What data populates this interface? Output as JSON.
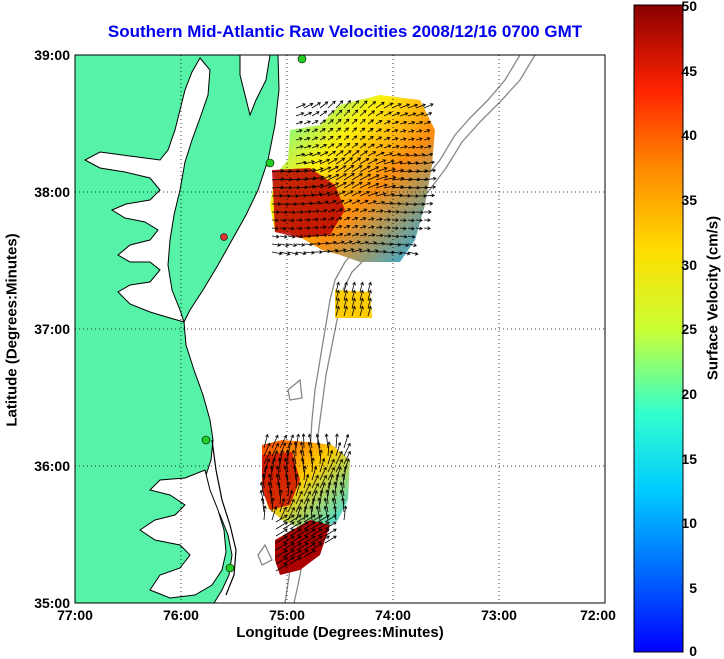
{
  "title": "Southern Mid-Atlantic Raw Velocities 2008/12/16 0700 GMT",
  "x_axis": {
    "label": "Longitude (Degrees:Minutes)",
    "ticks": [
      "77:00",
      "76:00",
      "75:00",
      "74:00",
      "73:00",
      "72:00"
    ]
  },
  "y_axis": {
    "label": "Latitude (Degrees:Minutes)",
    "ticks": [
      "39:00",
      "38:00",
      "37:00",
      "36:00",
      "35:00"
    ]
  },
  "colorbar": {
    "label": "Surface Velocity (cm/s)",
    "ticks": [
      "50",
      "45",
      "40",
      "35",
      "30",
      "25",
      "20",
      "15",
      "10",
      "5",
      "0"
    ],
    "min": 0,
    "max": 50,
    "colormap": "jet"
  },
  "map_extent": {
    "lon_min": -77,
    "lon_max": -72,
    "lat_min": 35,
    "lat_max": 39
  },
  "colors": {
    "land": "#55f2a8",
    "water": "#ffffff",
    "coastline": "#000000",
    "bathymetry": "#888888",
    "title": "#0000ee",
    "station_marker": "#22cc22",
    "station_marker_alt": "#dd3333"
  },
  "grid": "dotted"
}
